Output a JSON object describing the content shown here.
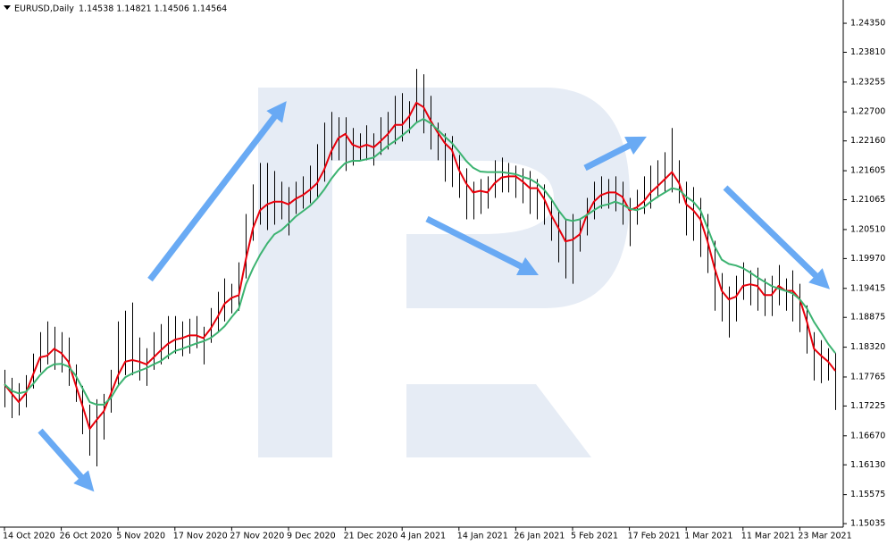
{
  "chart_data": {
    "type": "ohlc",
    "title": "EURUSD,Daily",
    "subtitle": "1.14538 1.14821 1.14506 1.14564",
    "categories": [
      "14 Oct 2020",
      null,
      null,
      null,
      null,
      null,
      null,
      null,
      "26 Oct 2020",
      null,
      null,
      null,
      null,
      null,
      null,
      null,
      "5 Nov 2020",
      null,
      null,
      null,
      null,
      null,
      null,
      null,
      "17 Nov 2020",
      null,
      null,
      null,
      null,
      null,
      null,
      null,
      "27 Nov 2020",
      null,
      null,
      null,
      null,
      null,
      null,
      null,
      "9 Dec 2020",
      null,
      null,
      null,
      null,
      null,
      null,
      null,
      "21 Dec 2020",
      null,
      null,
      null,
      null,
      null,
      null,
      null,
      "4 Jan 2021",
      null,
      null,
      null,
      null,
      null,
      null,
      null,
      "14 Jan 2021",
      null,
      null,
      null,
      null,
      null,
      null,
      null,
      "26 Jan 2021",
      null,
      null,
      null,
      null,
      null,
      null,
      null,
      "5 Feb 2021",
      null,
      null,
      null,
      null,
      null,
      null,
      null,
      "17 Feb 2021",
      null,
      null,
      null,
      null,
      null,
      null,
      null,
      "1 Mar 2021",
      null,
      null,
      null,
      null,
      null,
      null,
      null,
      "11 Mar 2021",
      null,
      null,
      null,
      null,
      null,
      null,
      null,
      "23 Mar 2021",
      null,
      null,
      null,
      null,
      null
    ],
    "high": [
      1.179,
      1.1775,
      1.1765,
      1.178,
      1.182,
      1.186,
      1.188,
      1.187,
      1.186,
      1.185,
      1.18,
      1.176,
      1.1725,
      1.1735,
      1.1745,
      1.179,
      1.188,
      1.19,
      1.1915,
      1.185,
      1.183,
      1.186,
      1.1875,
      1.189,
      1.189,
      1.188,
      1.1885,
      1.189,
      1.187,
      1.1905,
      1.1935,
      1.196,
      1.195,
      1.199,
      1.208,
      1.2135,
      1.2175,
      1.2175,
      1.216,
      1.214,
      1.213,
      1.214,
      1.215,
      1.217,
      1.221,
      1.225,
      1.227,
      1.226,
      1.226,
      1.224,
      1.223,
      1.2245,
      1.223,
      1.226,
      1.227,
      1.23,
      1.2305,
      1.229,
      1.235,
      1.234,
      1.23,
      1.225,
      1.223,
      1.2225,
      1.219,
      1.2165,
      1.214,
      1.2145,
      1.215,
      1.218,
      1.2185,
      1.2175,
      1.217,
      1.2165,
      1.216,
      1.2145,
      1.2135,
      1.211,
      1.2085,
      1.207,
      1.208,
      1.207,
      1.211,
      1.214,
      1.215,
      1.2145,
      1.215,
      1.214,
      1.211,
      1.2125,
      1.215,
      1.217,
      1.218,
      1.2195,
      1.224,
      1.218,
      1.214,
      1.213,
      1.211,
      1.208,
      1.203,
      1.197,
      1.1945,
      1.1965,
      1.199,
      1.1975,
      1.198,
      1.196,
      1.1965,
      1.1985,
      1.196,
      1.1975,
      1.195,
      1.191,
      1.186,
      1.1845,
      1.183,
      1.1821
    ],
    "low": [
      1.172,
      1.17,
      1.1705,
      1.172,
      1.1755,
      1.1785,
      1.18,
      1.179,
      1.1785,
      1.176,
      1.173,
      1.167,
      1.163,
      1.161,
      1.166,
      1.171,
      1.176,
      1.178,
      1.178,
      1.177,
      1.176,
      1.179,
      1.18,
      1.181,
      1.182,
      1.1815,
      1.182,
      1.183,
      1.18,
      1.184,
      1.186,
      1.188,
      1.1895,
      1.19,
      1.196,
      1.203,
      1.206,
      1.205,
      1.206,
      1.207,
      1.204,
      1.208,
      1.209,
      1.21,
      1.211,
      1.214,
      1.218,
      1.218,
      1.216,
      1.217,
      1.218,
      1.218,
      1.217,
      1.219,
      1.22,
      1.221,
      1.2215,
      1.223,
      1.225,
      1.223,
      1.22,
      1.218,
      1.214,
      1.213,
      1.211,
      1.207,
      1.207,
      1.208,
      1.209,
      1.211,
      1.212,
      1.212,
      1.211,
      1.21,
      1.208,
      1.207,
      1.206,
      1.203,
      1.199,
      1.196,
      1.195,
      1.201,
      1.204,
      1.207,
      1.209,
      1.209,
      1.2085,
      1.206,
      1.202,
      1.206,
      1.208,
      1.209,
      1.211,
      1.212,
      1.212,
      1.21,
      1.204,
      1.203,
      1.2,
      1.197,
      1.19,
      1.188,
      1.185,
      1.188,
      1.192,
      1.191,
      1.19,
      1.189,
      1.189,
      1.191,
      1.19,
      1.188,
      1.186,
      1.182,
      1.177,
      1.1765,
      1.177,
      1.1715
    ],
    "bar_color": "#000000",
    "series": [
      {
        "color": "#e8000b",
        "values": [
          1.1763,
          1.1746,
          1.173,
          1.1746,
          1.178,
          1.1813,
          1.1816,
          1.1829,
          1.1821,
          1.1805,
          1.1763,
          1.1722,
          1.168,
          1.1697,
          1.1713,
          1.1746,
          1.178,
          1.1805,
          1.1808,
          1.1805,
          1.18,
          1.1813,
          1.1826,
          1.1838,
          1.1846,
          1.1849,
          1.1854,
          1.1854,
          1.1849,
          1.1866,
          1.1888,
          1.1913,
          1.1924,
          1.1929,
          1.1996,
          1.2054,
          1.2087,
          1.2098,
          1.2103,
          1.2103,
          1.2098,
          1.2108,
          1.2115,
          1.2125,
          1.2137,
          1.2162,
          1.2196,
          1.2221,
          1.2229,
          1.2209,
          1.2204,
          1.2209,
          1.2204,
          1.2216,
          1.2229,
          1.2246,
          1.2246,
          1.2262,
          1.2287,
          1.2279,
          1.2254,
          1.2232,
          1.2212,
          1.2199,
          1.2162,
          1.2137,
          1.212,
          1.2123,
          1.212,
          1.2137,
          1.2148,
          1.215,
          1.215,
          1.214,
          1.2128,
          1.2128,
          1.2108,
          1.2078,
          1.2054,
          1.2029,
          1.2032,
          1.2042,
          1.2078,
          1.2103,
          1.2115,
          1.212,
          1.212,
          1.2112,
          1.2087,
          1.2092,
          1.2103,
          1.212,
          1.2132,
          1.2145,
          1.2158,
          1.2137,
          1.2098,
          1.2087,
          1.207,
          1.2029,
          1.1979,
          1.1937,
          1.1921,
          1.1926,
          1.1946,
          1.1949,
          1.1946,
          1.1929,
          1.1929,
          1.1946,
          1.1937,
          1.1937,
          1.1921,
          1.1879,
          1.1829,
          1.1816,
          1.1805,
          1.1788
        ]
      },
      {
        "color": "#3cb371",
        "values": [
          1.1763,
          1.1751,
          1.1746,
          1.1749,
          1.1763,
          1.178,
          1.1793,
          1.18,
          1.1801,
          1.1796,
          1.178,
          1.1755,
          1.173,
          1.1725,
          1.1725,
          1.1738,
          1.176,
          1.1776,
          1.1783,
          1.1788,
          1.1793,
          1.18,
          1.1806,
          1.1816,
          1.1825,
          1.1829,
          1.1834,
          1.1839,
          1.1843,
          1.1849,
          1.1859,
          1.1871,
          1.1888,
          1.1904,
          1.1949,
          1.1979,
          1.2004,
          1.2025,
          1.2042,
          1.205,
          1.2062,
          1.2075,
          1.2085,
          1.2095,
          1.2108,
          1.2125,
          1.2145,
          1.2162,
          1.2175,
          1.2179,
          1.2179,
          1.2182,
          1.2185,
          1.2196,
          1.2207,
          1.2216,
          1.2226,
          1.2237,
          1.225,
          1.2257,
          1.2249,
          1.2237,
          1.2224,
          1.2212,
          1.2196,
          1.2179,
          1.2166,
          1.2159,
          1.2158,
          1.2158,
          1.2158,
          1.2156,
          1.2154,
          1.2149,
          1.2145,
          1.2137,
          1.2125,
          1.2108,
          1.2087,
          1.207,
          1.2067,
          1.207,
          1.2078,
          1.2087,
          1.2095,
          1.2098,
          1.2103,
          1.2098,
          1.209,
          1.2087,
          1.2092,
          1.2103,
          1.2112,
          1.212,
          1.2128,
          1.2125,
          1.2112,
          1.2103,
          1.2087,
          1.2054,
          1.202,
          1.1995,
          1.1987,
          1.1984,
          1.1979,
          1.1971,
          1.1962,
          1.1954,
          1.1946,
          1.1941,
          1.1937,
          1.1932,
          1.1921,
          1.1904,
          1.1879,
          1.1859,
          1.1838,
          1.1821
        ]
      }
    ],
    "ylim": [
      1.1497,
      1.247
    ],
    "yticks": [
      {
        "value": 1.2435,
        "label": "1.24350"
      },
      {
        "value": 1.2381,
        "label": "1.23810"
      },
      1.23255,
      {
        "value": 1.227,
        "label": "1.22700"
      },
      {
        "value": 1.2216,
        "label": "1.22160"
      },
      1.21605,
      1.21065,
      {
        "value": 1.2051,
        "label": "1.20510"
      },
      {
        "value": 1.1997,
        "label": "1.19970"
      },
      1.19415,
      1.18875,
      {
        "value": 1.1832,
        "label": "1.18320"
      },
      1.17765,
      1.17225,
      {
        "value": 1.1667,
        "label": "1.16670"
      },
      {
        "value": 1.1613,
        "label": "1.16130"
      },
      1.15575,
      1.15035
    ]
  }
}
